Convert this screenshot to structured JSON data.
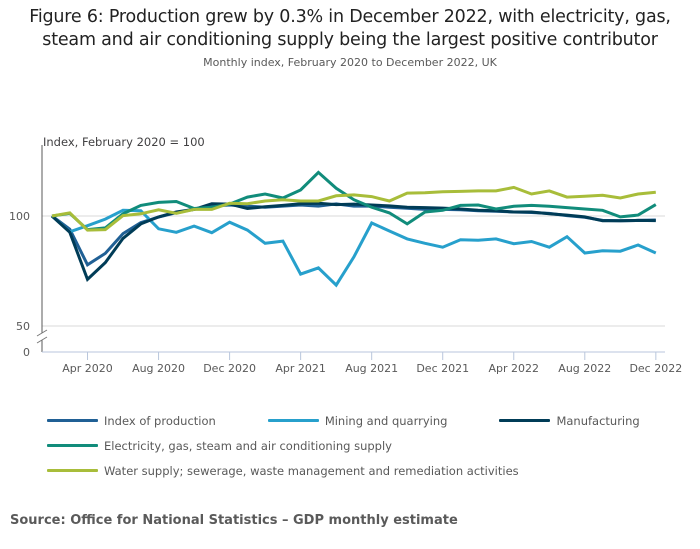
{
  "header": {
    "title_line1": "Figure 6: Production grew by 0.3% in December 2022, with electricity, gas,",
    "title_line2": "steam and air conditioning supply being the largest positive contributor",
    "subtitle": "Monthly index, February 2020 to December 2022, UK"
  },
  "footer": {
    "source": "Source: Office for National Statistics – GDP monthly estimate"
  },
  "chart_data": {
    "type": "line",
    "title": "Figure 6: Production grew by 0.3% in December 2022, with electricity, gas, steam and air conditioning supply being the largest positive contributor",
    "subtitle": "Monthly index, February 2020 to December 2022, UK",
    "ylabel": "Index, February 2020 = 100",
    "xlabel": "",
    "ylim": [
      0,
      125
    ],
    "axis_break": [
      0,
      50
    ],
    "y_ticks": [
      {
        "value": 0,
        "label": "0"
      },
      {
        "value": 50,
        "label": "50"
      },
      {
        "value": 100,
        "label": "100"
      }
    ],
    "x_tick_labels": [
      "Apr 2020",
      "Aug 2020",
      "Dec 2020",
      "Apr 2021",
      "Aug 2021",
      "Dec 2021",
      "Apr 2022",
      "Aug 2022",
      "Dec 2022"
    ],
    "x_tick_indices": [
      2,
      6,
      10,
      14,
      18,
      22,
      26,
      30,
      34
    ],
    "grid": true,
    "legend_position": "bottom",
    "x": [
      "Feb 2020",
      "Mar 2020",
      "Apr 2020",
      "May 2020",
      "Jun 2020",
      "Jul 2020",
      "Aug 2020",
      "Sep 2020",
      "Oct 2020",
      "Nov 2020",
      "Dec 2020",
      "Jan 2021",
      "Feb 2021",
      "Mar 2021",
      "Apr 2021",
      "May 2021",
      "Jun 2021",
      "Jul 2021",
      "Aug 2021",
      "Sep 2021",
      "Oct 2021",
      "Nov 2021",
      "Dec 2021",
      "Jan 2022",
      "Feb 2022",
      "Mar 2022",
      "Apr 2022",
      "May 2022",
      "Jun 2022",
      "Jul 2022",
      "Aug 2022",
      "Sep 2022",
      "Oct 2022",
      "Nov 2022",
      "Dec 2022"
    ],
    "series": [
      {
        "name": "Index of production",
        "color": "#206095",
        "values": [
          100,
          94.0,
          77.8,
          83.0,
          92.0,
          97.0,
          99.5,
          101.5,
          103.0,
          104.5,
          105.0,
          104.5,
          104.0,
          104.5,
          105.0,
          104.5,
          105.5,
          104.5,
          104.5,
          104.0,
          103.5,
          103.0,
          103.0,
          102.8,
          102.4,
          102.2,
          101.8,
          101.6,
          101.2,
          100.2,
          99.4,
          98.0,
          97.8,
          98.0,
          98.2
        ]
      },
      {
        "name": "Mining and quarrying",
        "color": "#27a0cc",
        "values": [
          100,
          92.8,
          95.6,
          98.6,
          102.6,
          102.4,
          94.2,
          92.6,
          95.4,
          92.4,
          97.2,
          93.6,
          87.6,
          88.6,
          73.6,
          76.4,
          68.6,
          81.4,
          96.8,
          93.2,
          89.6,
          87.6,
          85.8,
          89.2,
          89.0,
          89.6,
          87.4,
          88.4,
          85.8,
          90.6,
          83.2,
          84.2,
          84.0,
          86.8,
          83.2
        ]
      },
      {
        "name": "Manufacturing",
        "color": "#003c57",
        "values": [
          100,
          92.6,
          71.2,
          78.8,
          89.8,
          96.4,
          99.6,
          101.8,
          103.0,
          105.6,
          105.4,
          103.4,
          104.2,
          104.8,
          105.6,
          105.8,
          105.2,
          105.4,
          105.0,
          104.6,
          104.0,
          103.8,
          103.6,
          103.2,
          102.6,
          102.4,
          101.8,
          101.8,
          101.0,
          100.4,
          99.6,
          97.8,
          97.8,
          98.0,
          97.9
        ]
      },
      {
        "name": "Electricity, gas, steam and air conditioning supply",
        "color": "#118c7b",
        "values": [
          100,
          101.2,
          93.8,
          94.6,
          101.0,
          104.8,
          106.2,
          106.6,
          103.4,
          104.0,
          105.4,
          108.6,
          110.0,
          108.2,
          111.8,
          119.8,
          112.6,
          107.4,
          104.0,
          101.4,
          96.4,
          101.8,
          102.6,
          104.8,
          105.0,
          103.2,
          104.4,
          104.8,
          104.4,
          103.8,
          103.2,
          102.6,
          99.6,
          100.4,
          105.2
        ]
      },
      {
        "name": "Water supply; sewerage, waste management and remediation activities",
        "color": "#a8bd3a",
        "values": [
          100,
          101.4,
          93.6,
          93.8,
          100.2,
          101.0,
          102.8,
          101.2,
          103.0,
          103.0,
          105.8,
          105.6,
          106.8,
          107.4,
          106.8,
          106.8,
          109.2,
          109.6,
          108.8,
          106.8,
          110.4,
          110.6,
          111.0,
          111.2,
          111.4,
          111.4,
          113.0,
          110.0,
          111.4,
          108.6,
          109.0,
          109.4,
          108.2,
          110.0,
          110.8
        ]
      }
    ]
  }
}
